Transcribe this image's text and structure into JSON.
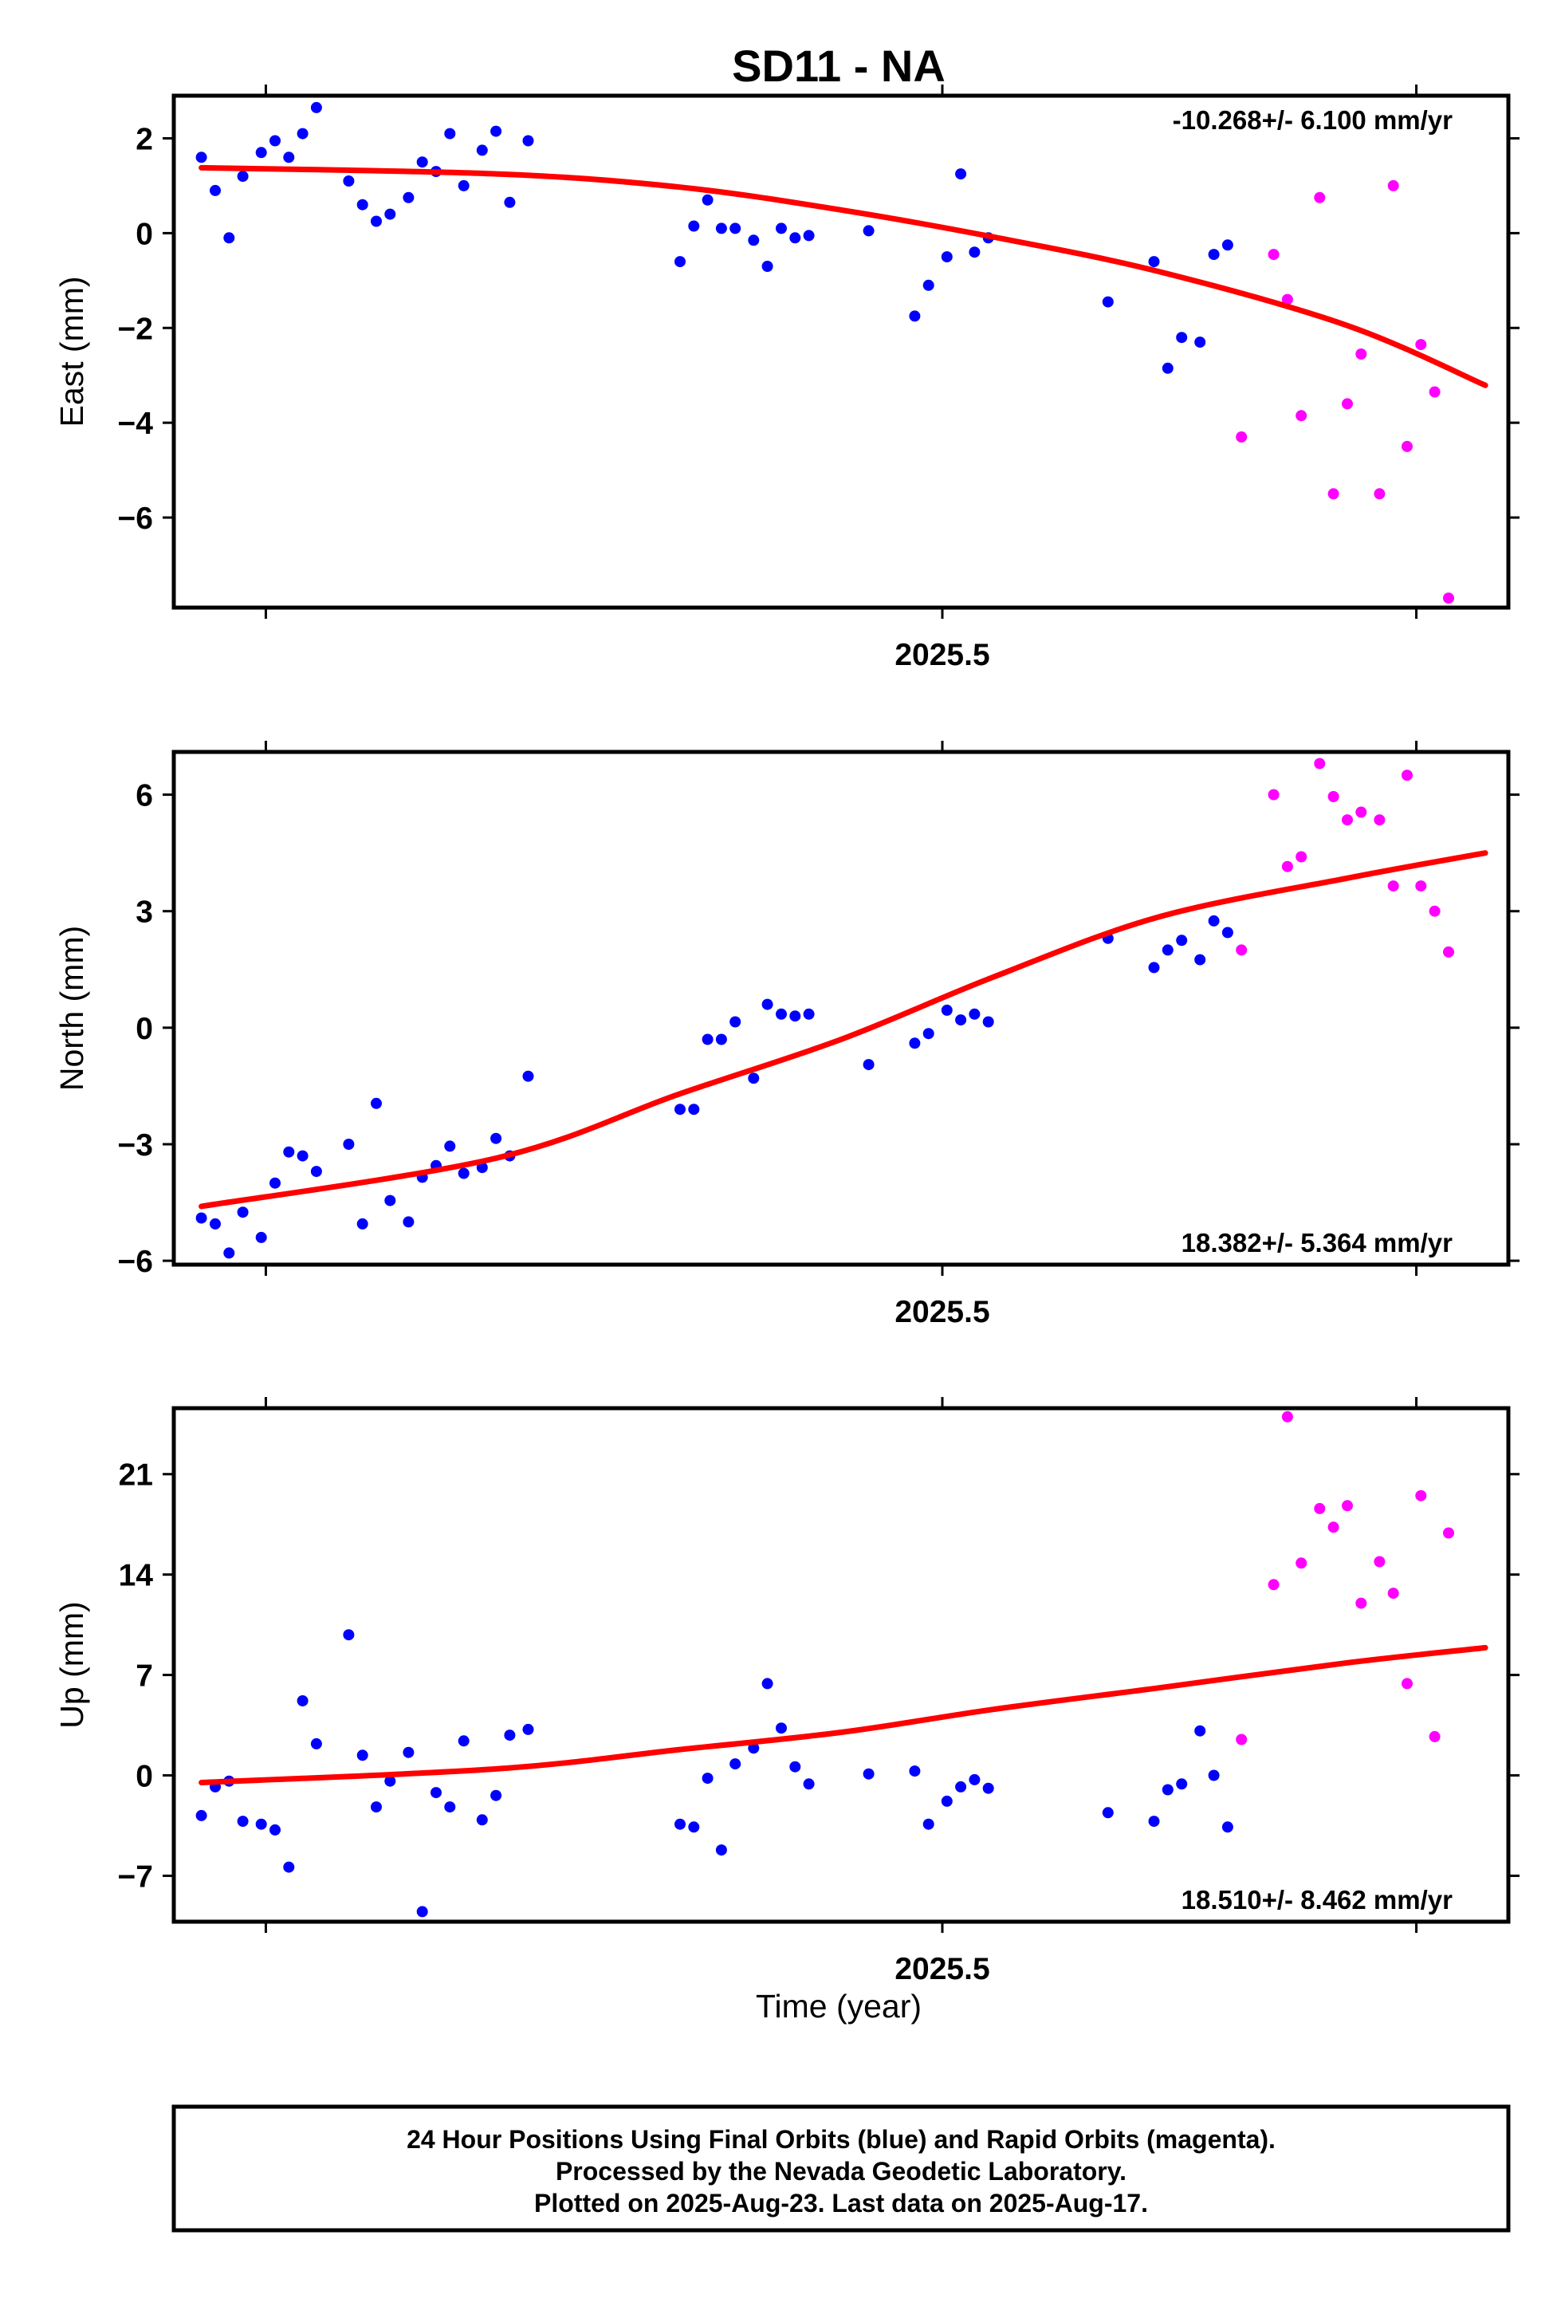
{
  "chart_data": {
    "type": "scatter",
    "title": "SD11 - NA",
    "xlabel": "Time (year)",
    "x_tick_labels": [
      "2025.5"
    ],
    "footer": [
      "24 Hour Positions Using Final Orbits (blue) and Rapid Orbits (magenta).",
      "Processed by the Nevada Geodetic Laboratory.",
      "Plotted on 2025-Aug-23. Last data on 2025-Aug-17."
    ],
    "colors": {
      "final": "#0000ff",
      "rapid": "#ff00ff",
      "fit": "#ff0000"
    },
    "series": [
      {
        "name": "Final Orbits (blue)",
        "color": "#0000ff"
      },
      {
        "name": "Rapid Orbits (magenta)",
        "color": "#ff00ff"
      }
    ],
    "panels": [
      {
        "id": "east",
        "ylabel": "East (mm)",
        "rate": "-10.268+/- 6.100 mm/yr",
        "rate_position": "top-right",
        "xlim": [
          2025.333,
          2025.623
        ],
        "ylim": [
          -7.9,
          2.9
        ],
        "xticks": [
          2025.353,
          2025.5,
          2025.603
        ],
        "yticks": [
          2,
          0,
          -2,
          -4,
          -6
        ],
        "ytick_labels": [
          "2",
          "0",
          "−2",
          "−4",
          "−6"
        ],
        "fit": {
          "x": [
            2025.339,
            2025.403,
            2025.443,
            2025.478,
            2025.511,
            2025.547,
            2025.588,
            2025.618
          ],
          "y": [
            1.38,
            1.25,
            0.97,
            0.49,
            -0.08,
            -0.81,
            -1.95,
            -3.21
          ]
        },
        "final": [
          [
            2025.339,
            1.6
          ],
          [
            2025.342,
            0.9
          ],
          [
            2025.345,
            -0.1
          ],
          [
            2025.348,
            1.2
          ],
          [
            2025.352,
            1.7
          ],
          [
            2025.355,
            1.95
          ],
          [
            2025.358,
            1.6
          ],
          [
            2025.361,
            2.1
          ],
          [
            2025.364,
            2.65
          ],
          [
            2025.371,
            1.1
          ],
          [
            2025.374,
            0.6
          ],
          [
            2025.377,
            0.25
          ],
          [
            2025.38,
            0.4
          ],
          [
            2025.384,
            0.75
          ],
          [
            2025.387,
            1.5
          ],
          [
            2025.39,
            1.3
          ],
          [
            2025.393,
            2.1
          ],
          [
            2025.396,
            1.0
          ],
          [
            2025.4,
            1.75
          ],
          [
            2025.403,
            2.15
          ],
          [
            2025.406,
            0.65
          ],
          [
            2025.41,
            1.95
          ],
          [
            2025.443,
            -0.6
          ],
          [
            2025.446,
            0.15
          ],
          [
            2025.449,
            0.7
          ],
          [
            2025.452,
            0.1
          ],
          [
            2025.455,
            0.1
          ],
          [
            2025.459,
            -0.15
          ],
          [
            2025.462,
            -0.7
          ],
          [
            2025.465,
            0.1
          ],
          [
            2025.468,
            -0.1
          ],
          [
            2025.471,
            -0.05
          ],
          [
            2025.484,
            0.05
          ],
          [
            2025.494,
            -1.75
          ],
          [
            2025.497,
            -1.1
          ],
          [
            2025.501,
            -0.5
          ],
          [
            2025.504,
            1.25
          ],
          [
            2025.507,
            -0.4
          ],
          [
            2025.51,
            -0.1
          ],
          [
            2025.536,
            -1.45
          ],
          [
            2025.546,
            -0.6
          ],
          [
            2025.549,
            -2.85
          ],
          [
            2025.552,
            -2.2
          ],
          [
            2025.556,
            -2.3
          ],
          [
            2025.559,
            -0.45
          ],
          [
            2025.562,
            -0.25
          ]
        ],
        "rapid": [
          [
            2025.565,
            -4.3
          ],
          [
            2025.572,
            -0.45
          ],
          [
            2025.575,
            -1.4
          ],
          [
            2025.578,
            -3.85
          ],
          [
            2025.582,
            0.75
          ],
          [
            2025.585,
            -5.5
          ],
          [
            2025.588,
            -3.6
          ],
          [
            2025.591,
            -2.55
          ],
          [
            2025.595,
            -5.5
          ],
          [
            2025.598,
            1.0
          ],
          [
            2025.601,
            -4.5
          ],
          [
            2025.604,
            -2.35
          ],
          [
            2025.607,
            -3.35
          ],
          [
            2025.61,
            -7.7
          ]
        ]
      },
      {
        "id": "north",
        "ylabel": "North (mm)",
        "rate": "18.382+/- 5.364 mm/yr",
        "rate_position": "bottom-right",
        "xlim": [
          2025.333,
          2025.623
        ],
        "ylim": [
          -6.1,
          7.1
        ],
        "xticks": [
          2025.353,
          2025.5,
          2025.603
        ],
        "yticks": [
          6,
          3,
          0,
          -3,
          -6
        ],
        "ytick_labels": [
          "6",
          "3",
          "0",
          "−3",
          "−6"
        ],
        "fit": {
          "x": [
            2025.339,
            2025.403,
            2025.443,
            2025.478,
            2025.511,
            2025.547,
            2025.588,
            2025.618
          ],
          "y": [
            -4.6,
            -3.36,
            -1.7,
            -0.3,
            1.3,
            2.85,
            3.85,
            4.5
          ]
        },
        "final": [
          [
            2025.339,
            -4.9
          ],
          [
            2025.342,
            -5.05
          ],
          [
            2025.345,
            -5.8
          ],
          [
            2025.348,
            -4.75
          ],
          [
            2025.352,
            -5.4
          ],
          [
            2025.355,
            -4.0
          ],
          [
            2025.358,
            -3.2
          ],
          [
            2025.361,
            -3.3
          ],
          [
            2025.364,
            -3.7
          ],
          [
            2025.371,
            -3.0
          ],
          [
            2025.374,
            -5.05
          ],
          [
            2025.377,
            -1.95
          ],
          [
            2025.38,
            -4.45
          ],
          [
            2025.384,
            -5.0
          ],
          [
            2025.387,
            -3.85
          ],
          [
            2025.39,
            -3.55
          ],
          [
            2025.393,
            -3.05
          ],
          [
            2025.396,
            -3.75
          ],
          [
            2025.4,
            -3.6
          ],
          [
            2025.403,
            -2.85
          ],
          [
            2025.406,
            -3.3
          ],
          [
            2025.41,
            -1.25
          ],
          [
            2025.443,
            -2.1
          ],
          [
            2025.446,
            -2.1
          ],
          [
            2025.449,
            -0.3
          ],
          [
            2025.452,
            -0.3
          ],
          [
            2025.455,
            0.15
          ],
          [
            2025.459,
            -1.3
          ],
          [
            2025.462,
            0.6
          ],
          [
            2025.465,
            0.35
          ],
          [
            2025.468,
            0.3
          ],
          [
            2025.471,
            0.35
          ],
          [
            2025.484,
            -0.95
          ],
          [
            2025.494,
            -0.4
          ],
          [
            2025.497,
            -0.15
          ],
          [
            2025.501,
            0.45
          ],
          [
            2025.504,
            0.2
          ],
          [
            2025.507,
            0.35
          ],
          [
            2025.51,
            0.15
          ],
          [
            2025.536,
            2.3
          ],
          [
            2025.546,
            1.55
          ],
          [
            2025.549,
            2.0
          ],
          [
            2025.552,
            2.25
          ],
          [
            2025.556,
            1.75
          ],
          [
            2025.559,
            2.75
          ],
          [
            2025.562,
            2.45
          ]
        ],
        "rapid": [
          [
            2025.565,
            2.0
          ],
          [
            2025.572,
            6.0
          ],
          [
            2025.575,
            4.15
          ],
          [
            2025.578,
            4.4
          ],
          [
            2025.582,
            6.8
          ],
          [
            2025.585,
            5.95
          ],
          [
            2025.588,
            5.35
          ],
          [
            2025.591,
            5.55
          ],
          [
            2025.595,
            5.35
          ],
          [
            2025.598,
            3.65
          ],
          [
            2025.601,
            6.5
          ],
          [
            2025.604,
            3.65
          ],
          [
            2025.607,
            3.0
          ],
          [
            2025.61,
            1.95
          ]
        ]
      },
      {
        "id": "up",
        "ylabel": "Up (mm)",
        "rate": "18.510+/- 8.462 mm/yr",
        "rate_position": "bottom-right",
        "xlim": [
          2025.333,
          2025.623
        ],
        "ylim": [
          -10.2,
          25.6
        ],
        "xticks": [
          2025.353,
          2025.5,
          2025.603
        ],
        "yticks": [
          21,
          14,
          7,
          0,
          -7
        ],
        "ytick_labels": [
          "21",
          "14",
          "7",
          "0",
          "−7"
        ],
        "fit": {
          "x": [
            2025.339,
            2025.403,
            2025.443,
            2025.478,
            2025.511,
            2025.547,
            2025.588,
            2025.618
          ],
          "y": [
            -0.5,
            0.45,
            1.8,
            3.0,
            4.6,
            6.1,
            7.85,
            8.9
          ]
        },
        "final": [
          [
            2025.339,
            -2.8
          ],
          [
            2025.342,
            -0.8
          ],
          [
            2025.345,
            -0.4
          ],
          [
            2025.348,
            -3.2
          ],
          [
            2025.352,
            -3.4
          ],
          [
            2025.355,
            -3.8
          ],
          [
            2025.358,
            -6.4
          ],
          [
            2025.361,
            5.2
          ],
          [
            2025.364,
            2.2
          ],
          [
            2025.371,
            9.8
          ],
          [
            2025.374,
            1.4
          ],
          [
            2025.377,
            -2.2
          ],
          [
            2025.38,
            -0.4
          ],
          [
            2025.384,
            1.6
          ],
          [
            2025.387,
            -9.5
          ],
          [
            2025.39,
            -1.2
          ],
          [
            2025.393,
            -2.2
          ],
          [
            2025.396,
            2.4
          ],
          [
            2025.4,
            -3.1
          ],
          [
            2025.403,
            -1.4
          ],
          [
            2025.406,
            2.8
          ],
          [
            2025.41,
            3.2
          ],
          [
            2025.443,
            -3.4
          ],
          [
            2025.446,
            -3.6
          ],
          [
            2025.449,
            -0.2
          ],
          [
            2025.452,
            -5.2
          ],
          [
            2025.455,
            0.8
          ],
          [
            2025.459,
            1.9
          ],
          [
            2025.462,
            6.4
          ],
          [
            2025.465,
            3.3
          ],
          [
            2025.468,
            0.6
          ],
          [
            2025.471,
            -0.6
          ],
          [
            2025.484,
            0.1
          ],
          [
            2025.494,
            0.3
          ],
          [
            2025.497,
            -3.4
          ],
          [
            2025.501,
            -1.8
          ],
          [
            2025.504,
            -0.8
          ],
          [
            2025.507,
            -0.3
          ],
          [
            2025.51,
            -0.9
          ],
          [
            2025.536,
            -2.6
          ],
          [
            2025.546,
            -3.2
          ],
          [
            2025.549,
            -1.0
          ],
          [
            2025.552,
            -0.6
          ],
          [
            2025.556,
            3.1
          ],
          [
            2025.559,
            0.0
          ],
          [
            2025.562,
            -3.6
          ]
        ],
        "rapid": [
          [
            2025.565,
            2.5
          ],
          [
            2025.572,
            13.3
          ],
          [
            2025.575,
            25.0
          ],
          [
            2025.578,
            14.8
          ],
          [
            2025.582,
            18.6
          ],
          [
            2025.585,
            17.3
          ],
          [
            2025.588,
            18.8
          ],
          [
            2025.591,
            12.0
          ],
          [
            2025.595,
            14.9
          ],
          [
            2025.598,
            12.7
          ],
          [
            2025.601,
            6.4
          ],
          [
            2025.604,
            19.5
          ],
          [
            2025.607,
            2.7
          ],
          [
            2025.61,
            16.9
          ]
        ]
      }
    ]
  }
}
